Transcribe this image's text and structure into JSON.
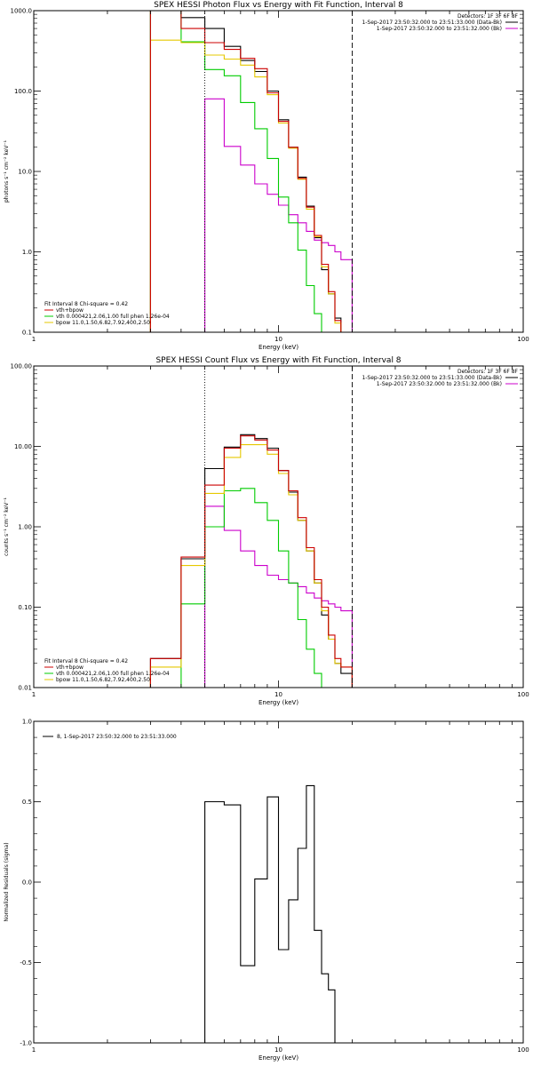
{
  "colors": {
    "observed": "#000000",
    "total": "#cc0000",
    "vth": "#00cc00",
    "bpow": "#e6c800",
    "background": "#cc00cc"
  },
  "panels": {
    "photon": {
      "title": "SPEX HESSI Photon Flux vs Energy with Fit Function, Interval 8",
      "ylabel": "photons s⁻¹ cm⁻² keV⁻¹",
      "xlabel": "Energy (keV)",
      "xticks": [
        "1",
        "10",
        "100"
      ],
      "yticks": [
        "1000.0",
        "100.0",
        "10.0",
        "1.0",
        "0.1"
      ]
    },
    "count": {
      "title": "SPEX HESSI Count Flux vs Energy with Fit Function, Interval 8",
      "ylabel": "counts s⁻¹ cm⁻² keV⁻¹",
      "xlabel": "Energy (keV)",
      "xticks": [
        "1",
        "10",
        "100"
      ],
      "yticks": [
        "100.00",
        "10.00",
        "1.00",
        "0.10",
        "0.01"
      ]
    },
    "resid": {
      "ylabel": "Normalized Residuals (sigma)",
      "xlabel": "Energy (keV)",
      "xticks": [
        "1",
        "10",
        "100"
      ],
      "yticks": [
        "1.0",
        "0.5",
        "0.0",
        "-0.5",
        "-1.0"
      ]
    }
  },
  "header": {
    "detectors": "Detectors: 1F 3F 6F 8F",
    "data_line": "1-Sep-2017 23:50:32.000 to 23:51:33.000 (Data-Bk)",
    "bk_line": "1-Sep-2017 23:50:32.000 to 23:51:32.000 (Bk)"
  },
  "fit_legend": {
    "header": "Fit Interval 8   Chi-square = 0.42",
    "total": "vth+bpow",
    "vth": "vth 0.000421,2.06,1.00  full phen 1.26e-04",
    "bpow": "bpow 11.0,1.50,6.82,7.92,400,2.50"
  },
  "resid_legend": "8, 1-Sep-2017 23:50:32.000 to 23:51:33.000",
  "chart_data": [
    {
      "type": "line",
      "title": "SPEX HESSI Photon Flux vs Energy with Fit Function, Interval 8",
      "xlabel": "Energy (keV)",
      "ylabel": "photons s-1 cm-2 keV-1",
      "xscale": "log",
      "yscale": "log",
      "xlim": [
        1,
        100
      ],
      "ylim": [
        0.1,
        1000
      ],
      "vlines": [
        {
          "x": 5.0,
          "style": "dotted"
        },
        {
          "x": 20.0,
          "style": "dashed"
        }
      ],
      "edges": [
        3,
        4,
        5,
        6,
        7,
        8,
        9,
        10,
        11,
        12,
        13,
        14,
        15,
        16,
        17,
        18,
        20,
        22
      ],
      "series": [
        {
          "name": "Data-Bk",
          "color": "observed",
          "values": [
            1000,
            820,
            600,
            360,
            240,
            175,
            100,
            44,
            20,
            8.5,
            3.7,
            1.5,
            0.6,
            0.3,
            0.15,
            0.1,
            0.1
          ]
        },
        {
          "name": "vth+bpow",
          "color": "total",
          "values": [
            1000,
            600,
            400,
            330,
            255,
            190,
            95,
            42,
            20,
            8.2,
            3.6,
            1.6,
            0.7,
            0.32,
            0.14,
            0.1,
            0.1
          ]
        },
        {
          "name": "vth",
          "color": "vth",
          "values": [
            1000,
            410,
            185,
            155,
            72,
            34,
            14.5,
            4.8,
            2.3,
            1.05,
            0.38,
            0.17,
            0.1,
            0.1,
            0.1,
            0.1,
            0.1
          ]
        },
        {
          "name": "bpow",
          "color": "bpow",
          "values": [
            430,
            400,
            280,
            250,
            210,
            150,
            90,
            40,
            19.5,
            8.0,
            3.4,
            1.55,
            0.65,
            0.3,
            0.13,
            0.1,
            0.1
          ]
        },
        {
          "name": "Bk",
          "color": "background",
          "values": [
            null,
            null,
            80,
            20.5,
            12,
            7,
            5.2,
            3.8,
            2.9,
            2.3,
            1.8,
            1.4,
            1.3,
            1.2,
            1.0,
            0.8,
            null
          ]
        }
      ]
    },
    {
      "type": "line",
      "title": "SPEX HESSI Count Flux vs Energy with Fit Function, Interval 8",
      "xlabel": "Energy (keV)",
      "ylabel": "counts s-1 cm-2 keV-1",
      "xscale": "log",
      "yscale": "log",
      "xlim": [
        1,
        100
      ],
      "ylim": [
        0.01,
        100
      ],
      "vlines": [
        {
          "x": 5.0,
          "style": "dotted"
        },
        {
          "x": 20.0,
          "style": "dashed"
        }
      ],
      "edges": [
        3,
        4,
        5,
        6,
        7,
        8,
        9,
        10,
        11,
        12,
        13,
        14,
        15,
        16,
        17,
        18,
        20,
        22
      ],
      "series": [
        {
          "name": "Data-Bk",
          "color": "observed",
          "values": [
            0.023,
            0.4,
            5.3,
            9.8,
            14,
            12.5,
            9.5,
            5.0,
            2.7,
            1.2,
            0.5,
            0.2,
            0.08,
            0.04,
            0.02,
            0.015,
            0.01
          ]
        },
        {
          "name": "vth+bpow",
          "color": "total",
          "values": [
            0.023,
            0.42,
            3.3,
            9.5,
            13.5,
            12,
            9.0,
            5.0,
            2.8,
            1.3,
            0.55,
            0.22,
            0.1,
            0.045,
            0.023,
            0.018,
            0.01
          ]
        },
        {
          "name": "vth",
          "color": "vth",
          "values": [
            0.01,
            0.11,
            1.0,
            2.8,
            3.0,
            2.0,
            1.2,
            0.5,
            0.2,
            0.07,
            0.03,
            0.015,
            0.01,
            0.01,
            0.01,
            0.01,
            0.01
          ]
        },
        {
          "name": "bpow",
          "color": "bpow",
          "values": [
            0.018,
            0.33,
            2.6,
            7.3,
            10.5,
            10.5,
            8.0,
            4.6,
            2.5,
            1.2,
            0.5,
            0.2,
            0.09,
            0.04,
            0.02,
            0.018,
            0.01
          ]
        },
        {
          "name": "Bk",
          "color": "background",
          "values": [
            null,
            null,
            1.8,
            0.9,
            0.5,
            0.33,
            0.25,
            0.22,
            0.2,
            0.18,
            0.15,
            0.13,
            0.12,
            0.11,
            0.1,
            0.09,
            null
          ]
        }
      ]
    },
    {
      "type": "line",
      "ylabel": "Normalized Residuals (sigma)",
      "xlabel": "Energy (keV)",
      "xscale": "log",
      "xlim": [
        1,
        100
      ],
      "ylim": [
        -1,
        1
      ],
      "edges": [
        5,
        6,
        7,
        8,
        9,
        10,
        11,
        12,
        13,
        14,
        15,
        16,
        17,
        18,
        20
      ],
      "series": [
        {
          "name": "8, 1-Sep-2017 23:50:32.000 to 23:51:33.000",
          "color": "observed",
          "values": [
            0.5,
            0.48,
            -0.52,
            0.02,
            0.53,
            -0.42,
            -0.11,
            0.21,
            0.6,
            -0.3,
            -0.57,
            -0.67,
            -1.0,
            -1.0
          ]
        }
      ]
    }
  ]
}
